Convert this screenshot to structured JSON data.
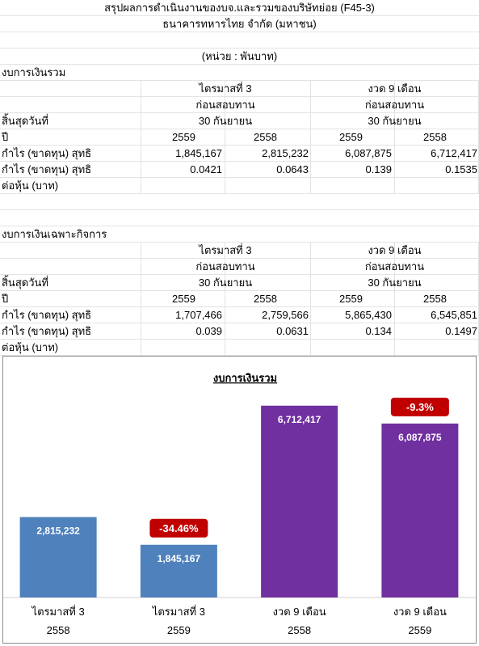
{
  "sheet": {
    "title": "สรุปผลการดำเนินงานของบจ.และรวมของบริษัทย่อย (F45-3)",
    "company": "ธนาคารทหารไทย จำกัด (มหาชน)",
    "unit": "(หน่วย : พันบาท)",
    "sections": [
      {
        "name": "งบการเงินรวม",
        "quarter_label": "ไตรมาสที่ 3",
        "ninemonth_label": "งวด 9 เดือน",
        "audit_q": "ก่อนสอบทาน",
        "audit_9m": "ก่อนสอบทาน",
        "end_date_label": "สิ้นสุดวันที่",
        "end_date_q": "30 กันยายน",
        "end_date_9m": "30 กันยายน",
        "year_label": "ปี",
        "years": [
          "2559",
          "2558",
          "2559",
          "2558"
        ],
        "rows": [
          {
            "label": "กำไร (ขาดทุน) สุทธิ",
            "values": [
              "1,845,167",
              "2,815,232",
              "6,087,875",
              "6,712,417"
            ]
          },
          {
            "label": "กำไร (ขาดทุน) สุทธิ",
            "values": [
              "0.0421",
              "0.0643",
              "0.139",
              "0.1535"
            ]
          },
          {
            "label": "ต่อหุ้น (บาท)",
            "values": [
              "",
              "",
              "",
              ""
            ]
          }
        ]
      },
      {
        "name": "งบการเงินเฉพาะกิจการ",
        "quarter_label": "ไตรมาสที่ 3",
        "ninemonth_label": "งวด 9 เดือน",
        "audit_q": "ก่อนสอบทาน",
        "audit_9m": "ก่อนสอบทาน",
        "end_date_label": "สิ้นสุดวันที่",
        "end_date_q": "30 กันยายน",
        "end_date_9m": "30 กันยายน",
        "year_label": "ปี",
        "years": [
          "2559",
          "2558",
          "2559",
          "2558"
        ],
        "rows": [
          {
            "label": "กำไร (ขาดทุน) สุทธิ",
            "values": [
              "1,707,466",
              "2,759,566",
              "5,865,430",
              "6,545,851"
            ]
          },
          {
            "label": "กำไร (ขาดทุน) สุทธิ",
            "values": [
              "0.039",
              "0.0631",
              "0.134",
              "0.1497"
            ]
          },
          {
            "label": "ต่อหุ้น (บาท)",
            "values": [
              "",
              "",
              "",
              ""
            ]
          }
        ]
      }
    ]
  },
  "chart_data": {
    "type": "bar",
    "title": "งบการเงินรวม",
    "categories": [
      [
        "ไตรมาสที่ 3",
        "2558"
      ],
      [
        "ไตรมาสที่ 3",
        "2559"
      ],
      [
        "งวด 9 เดือน",
        "2558"
      ],
      [
        "งวด 9 เดือน",
        "2559"
      ]
    ],
    "values": [
      2815232,
      1845167,
      6712417,
      6087875
    ],
    "value_labels": [
      "2,815,232",
      "1,845,167",
      "6,712,417",
      "6,087,875"
    ],
    "colors": [
      "#4f81bd",
      "#4f81bd",
      "#7030a0",
      "#7030a0"
    ],
    "ylim": [
      0,
      7300000
    ],
    "grid": false,
    "annotations": [
      {
        "bar_index": 1,
        "text": "-34.46%"
      },
      {
        "bar_index": 3,
        "text": "-9.3%"
      }
    ],
    "annotation_color": "#c00000"
  }
}
